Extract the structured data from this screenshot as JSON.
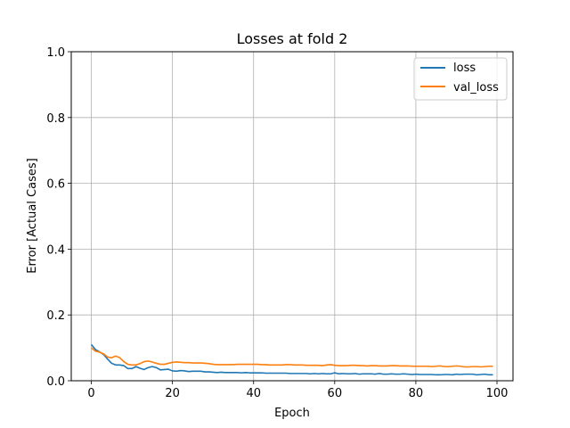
{
  "chart_data": {
    "type": "line",
    "title": "Losses at fold 2",
    "xlabel": "Epoch",
    "ylabel": "Error [Actual Cases]",
    "xlim": [
      -4.95,
      103.95
    ],
    "ylim": [
      0,
      1.0
    ],
    "xticks": [
      0,
      20,
      40,
      60,
      80,
      100
    ],
    "yticks": [
      0.0,
      0.2,
      0.4,
      0.6,
      0.8,
      1.0
    ],
    "xtick_labels": [
      "0",
      "20",
      "40",
      "60",
      "80",
      "100"
    ],
    "ytick_labels": [
      "0.0",
      "0.2",
      "0.4",
      "0.6",
      "0.8",
      "1.0"
    ],
    "grid": true,
    "legend_position": "top-right",
    "x": [
      0,
      1,
      2,
      3,
      4,
      5,
      6,
      7,
      8,
      9,
      10,
      11,
      12,
      13,
      14,
      15,
      16,
      17,
      18,
      19,
      20,
      21,
      22,
      23,
      24,
      25,
      26,
      27,
      28,
      29,
      30,
      31,
      32,
      33,
      34,
      35,
      36,
      37,
      38,
      39,
      40,
      41,
      42,
      43,
      44,
      45,
      46,
      47,
      48,
      49,
      50,
      51,
      52,
      53,
      54,
      55,
      56,
      57,
      58,
      59,
      60,
      61,
      62,
      63,
      64,
      65,
      66,
      67,
      68,
      69,
      70,
      71,
      72,
      73,
      74,
      75,
      76,
      77,
      78,
      79,
      80,
      81,
      82,
      83,
      84,
      85,
      86,
      87,
      88,
      89,
      90,
      91,
      92,
      93,
      94,
      95,
      96,
      97,
      98,
      99
    ],
    "series": [
      {
        "name": "loss",
        "color": "#1f77b4",
        "values": [
          0.11,
          0.095,
          0.088,
          0.08,
          0.066,
          0.053,
          0.048,
          0.048,
          0.046,
          0.037,
          0.037,
          0.043,
          0.038,
          0.034,
          0.04,
          0.043,
          0.04,
          0.033,
          0.034,
          0.035,
          0.03,
          0.029,
          0.031,
          0.03,
          0.028,
          0.029,
          0.029,
          0.029,
          0.027,
          0.027,
          0.026,
          0.025,
          0.026,
          0.025,
          0.025,
          0.025,
          0.025,
          0.024,
          0.025,
          0.024,
          0.024,
          0.024,
          0.024,
          0.023,
          0.023,
          0.023,
          0.023,
          0.023,
          0.023,
          0.022,
          0.022,
          0.022,
          0.022,
          0.022,
          0.021,
          0.022,
          0.021,
          0.022,
          0.021,
          0.021,
          0.024,
          0.021,
          0.022,
          0.021,
          0.021,
          0.022,
          0.02,
          0.021,
          0.021,
          0.021,
          0.02,
          0.022,
          0.02,
          0.02,
          0.021,
          0.02,
          0.02,
          0.021,
          0.02,
          0.019,
          0.02,
          0.019,
          0.019,
          0.019,
          0.019,
          0.018,
          0.018,
          0.019,
          0.019,
          0.018,
          0.02,
          0.019,
          0.02,
          0.02,
          0.02,
          0.018,
          0.019,
          0.02,
          0.018,
          0.018
        ]
      },
      {
        "name": "val_loss",
        "color": "#ff7f0e",
        "values": [
          0.1,
          0.09,
          0.087,
          0.082,
          0.072,
          0.07,
          0.075,
          0.07,
          0.058,
          0.05,
          0.048,
          0.048,
          0.052,
          0.058,
          0.06,
          0.057,
          0.053,
          0.05,
          0.05,
          0.053,
          0.056,
          0.057,
          0.056,
          0.055,
          0.055,
          0.054,
          0.054,
          0.054,
          0.053,
          0.052,
          0.05,
          0.049,
          0.049,
          0.049,
          0.049,
          0.049,
          0.05,
          0.05,
          0.05,
          0.05,
          0.05,
          0.05,
          0.049,
          0.049,
          0.048,
          0.048,
          0.048,
          0.048,
          0.049,
          0.049,
          0.048,
          0.048,
          0.048,
          0.047,
          0.047,
          0.047,
          0.047,
          0.046,
          0.048,
          0.049,
          0.047,
          0.046,
          0.046,
          0.046,
          0.047,
          0.047,
          0.046,
          0.046,
          0.045,
          0.046,
          0.046,
          0.045,
          0.045,
          0.045,
          0.046,
          0.046,
          0.045,
          0.045,
          0.045,
          0.044,
          0.044,
          0.044,
          0.044,
          0.044,
          0.043,
          0.044,
          0.045,
          0.043,
          0.043,
          0.044,
          0.045,
          0.044,
          0.042,
          0.042,
          0.043,
          0.043,
          0.042,
          0.043,
          0.044,
          0.044
        ]
      }
    ]
  }
}
